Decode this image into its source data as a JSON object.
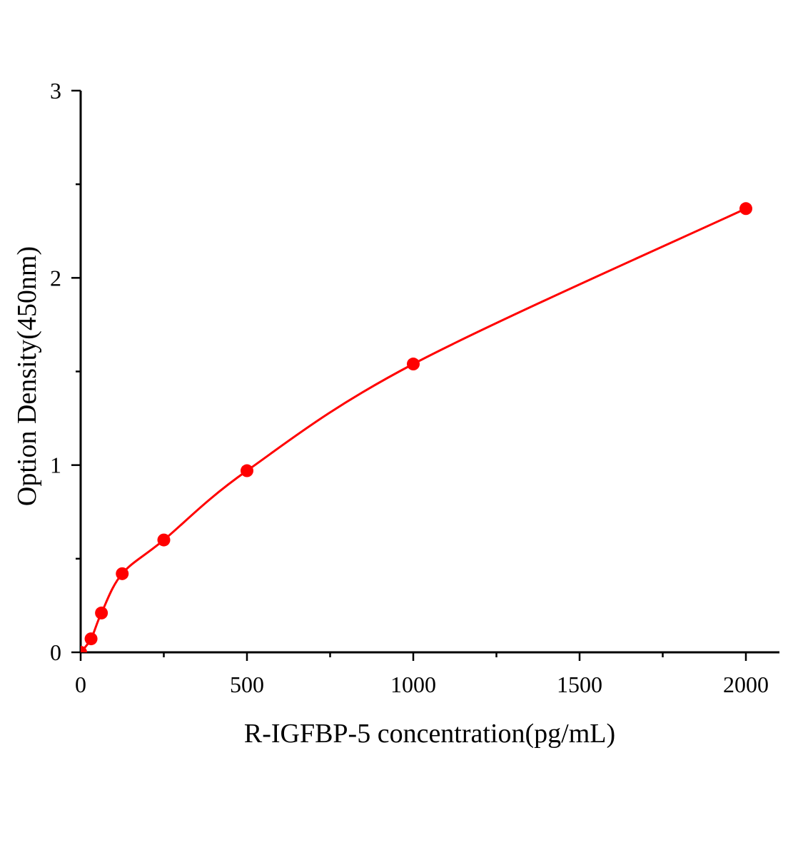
{
  "chart_data": {
    "type": "scatter",
    "title": "",
    "xlabel": "R-IGFBP-5 concentration(pg/mL)",
    "ylabel": "Option Density(450nm)",
    "xlim": [
      0,
      2100
    ],
    "ylim": [
      0,
      3
    ],
    "xticks": [
      0,
      500,
      1000,
      1500,
      2000
    ],
    "yticks": [
      0,
      1,
      2,
      3
    ],
    "grid": false,
    "legend": "none",
    "color": "#ff0000",
    "series": [
      {
        "x": [
          0,
          31.25,
          62.5,
          125,
          250,
          500,
          1000,
          2000
        ],
        "y": [
          0,
          0.072,
          0.21,
          0.42,
          0.6,
          0.97,
          1.54,
          2.37
        ],
        "fit_line": true
      }
    ]
  }
}
